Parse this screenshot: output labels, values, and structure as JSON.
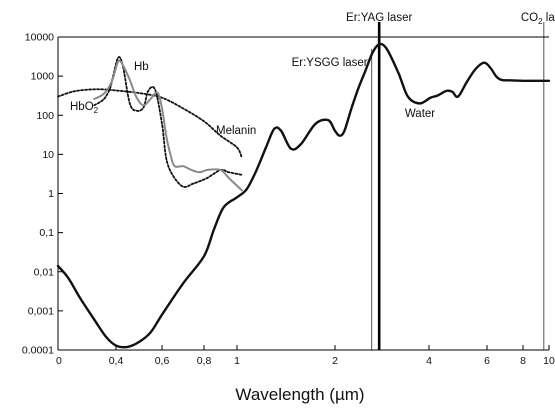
{
  "chart_data": {
    "type": "line",
    "title": "",
    "xlabel": "Wavelength (µm)",
    "ylabel": "",
    "x_scale": "piecewise",
    "y_scale": "log",
    "xlim": [
      0,
      10
    ],
    "ylim": [
      0.0001,
      10000
    ],
    "grid": false,
    "x_tick_labels": [
      {
        "v": 0,
        "t": "0"
      },
      {
        "v": 0.4,
        "t": "0,4"
      },
      {
        "v": 0.6,
        "t": "0,6"
      },
      {
        "v": 0.8,
        "t": "0,8"
      },
      {
        "v": 1,
        "t": "1"
      },
      {
        "v": 2,
        "t": "2"
      },
      {
        "v": 4,
        "t": "4"
      },
      {
        "v": 6,
        "t": "6"
      },
      {
        "v": 8,
        "t": "8"
      },
      {
        "v": 10,
        "t": "10"
      }
    ],
    "y_tick_labels": [
      {
        "v": 0.0001,
        "t": "0.0001"
      },
      {
        "v": 0.001,
        "t": "0,001"
      },
      {
        "v": 0.01,
        "t": "0,01"
      },
      {
        "v": 0.1,
        "t": "0,1"
      },
      {
        "v": 1,
        "t": "1"
      },
      {
        "v": 10,
        "t": "10"
      },
      {
        "v": 100,
        "t": "100"
      },
      {
        "v": 1000,
        "t": "1000"
      },
      {
        "v": 10000,
        "t": "10000"
      }
    ],
    "vlines": [
      {
        "label": "Er:YAG laser",
        "x": 2.94,
        "color": "#000000",
        "width": 2.6
      },
      {
        "label": "Er:YSGG laser",
        "x": 2.78,
        "color": "#555555",
        "width": 1
      },
      {
        "label": "CO",
        "sub": "2",
        "suffix": " laser",
        "x": 9.6,
        "color": "#555555",
        "width": 1
      }
    ],
    "series": [
      {
        "name": "Water",
        "color": "#111111",
        "width": 2.4,
        "dash": "",
        "points": [
          [
            0,
            0.014
          ],
          [
            0.07,
            0.007
          ],
          [
            0.15,
            0.0022
          ],
          [
            0.25,
            0.0006
          ],
          [
            0.33,
            0.00022
          ],
          [
            0.4,
            0.00013
          ],
          [
            0.45,
            0.00012
          ],
          [
            0.5,
            0.00016
          ],
          [
            0.55,
            0.00028
          ],
          [
            0.6,
            0.0008
          ],
          [
            0.7,
            0.005
          ],
          [
            0.8,
            0.025
          ],
          [
            0.86,
            0.12
          ],
          [
            0.92,
            0.45
          ],
          [
            1.0,
            0.8
          ],
          [
            1.1,
            1.3
          ],
          [
            1.2,
            4
          ],
          [
            1.3,
            16
          ],
          [
            1.38,
            45
          ],
          [
            1.45,
            40
          ],
          [
            1.55,
            14
          ],
          [
            1.65,
            18
          ],
          [
            1.8,
            60
          ],
          [
            1.93,
            75
          ],
          [
            2.0,
            40
          ],
          [
            2.1,
            30
          ],
          [
            2.2,
            40
          ],
          [
            2.35,
            150
          ],
          [
            2.5,
            500
          ],
          [
            2.65,
            1400
          ],
          [
            2.8,
            4000
          ],
          [
            2.94,
            6500
          ],
          [
            3.1,
            5000
          ],
          [
            3.35,
            1200
          ],
          [
            3.55,
            300
          ],
          [
            3.8,
            200
          ],
          [
            4.05,
            280
          ],
          [
            4.3,
            320
          ],
          [
            4.6,
            420
          ],
          [
            4.8,
            400
          ],
          [
            5.0,
            300
          ],
          [
            5.3,
            700
          ],
          [
            5.6,
            1500
          ],
          [
            5.9,
            2200
          ],
          [
            6.2,
            1600
          ],
          [
            6.5,
            1000
          ],
          [
            6.8,
            800
          ],
          [
            7.2,
            780
          ],
          [
            8.0,
            760
          ],
          [
            9.0,
            760
          ],
          [
            10.0,
            760
          ]
        ]
      },
      {
        "name": "Hb",
        "color": "#8a8a8a",
        "width": 2,
        "dash": "",
        "points": [
          [
            0.25,
            260
          ],
          [
            0.3,
            320
          ],
          [
            0.33,
            400
          ],
          [
            0.36,
            600
          ],
          [
            0.38,
            900
          ],
          [
            0.41,
            2400
          ],
          [
            0.43,
            1900
          ],
          [
            0.46,
            800
          ],
          [
            0.49,
            280
          ],
          [
            0.52,
            180
          ],
          [
            0.55,
            260
          ],
          [
            0.58,
            380
          ],
          [
            0.6,
            150
          ],
          [
            0.62,
            30
          ],
          [
            0.64,
            10
          ],
          [
            0.66,
            5
          ],
          [
            0.7,
            5
          ],
          [
            0.74,
            4
          ],
          [
            0.78,
            3.5
          ],
          [
            0.82,
            4
          ],
          [
            0.9,
            4
          ],
          [
            0.95,
            2.5
          ],
          [
            1.05,
            1.2
          ]
        ]
      },
      {
        "name": "HbO",
        "sub": "2",
        "color": "#111111",
        "width": 1.8,
        "dash": "2 2",
        "points": [
          [
            0.25,
            180
          ],
          [
            0.3,
            230
          ],
          [
            0.33,
            300
          ],
          [
            0.36,
            500
          ],
          [
            0.38,
            1000
          ],
          [
            0.41,
            3000
          ],
          [
            0.43,
            1800
          ],
          [
            0.46,
            200
          ],
          [
            0.49,
            130
          ],
          [
            0.52,
            160
          ],
          [
            0.54,
            420
          ],
          [
            0.57,
            450
          ],
          [
            0.6,
            60
          ],
          [
            0.62,
            8
          ],
          [
            0.65,
            3
          ],
          [
            0.7,
            1.5
          ],
          [
            0.75,
            1.8
          ],
          [
            0.82,
            2.5
          ],
          [
            0.9,
            4
          ],
          [
            0.95,
            3.5
          ],
          [
            1.05,
            3
          ]
        ]
      },
      {
        "name": "Melanin",
        "color": "#111111",
        "width": 1.8,
        "dash": "2 2",
        "points": [
          [
            0,
            300
          ],
          [
            0.1,
            400
          ],
          [
            0.2,
            450
          ],
          [
            0.3,
            460
          ],
          [
            0.4,
            430
          ],
          [
            0.5,
            370
          ],
          [
            0.6,
            280
          ],
          [
            0.7,
            150
          ],
          [
            0.8,
            70
          ],
          [
            0.9,
            30
          ],
          [
            1.0,
            15
          ],
          [
            1.05,
            8
          ]
        ]
      }
    ]
  }
}
